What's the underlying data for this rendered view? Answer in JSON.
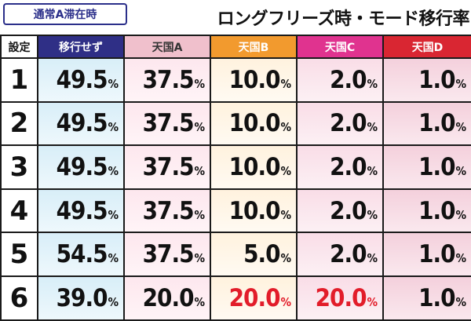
{
  "badge": "通常A滞在時",
  "title": "ロングフリーズ時・モード移行率",
  "columns": {
    "setting": "設定",
    "c0": "移行せず",
    "c1": "天国A",
    "c2": "天国B",
    "c3": "天国C",
    "c4": "天国D"
  },
  "percent_sign": "%",
  "highlight_color": "#e21d2a",
  "rows": [
    {
      "setting": "1",
      "values": [
        "49.5",
        "37.5",
        "10.0",
        "2.0",
        "1.0"
      ],
      "highlight": [
        false,
        false,
        false,
        false,
        false
      ]
    },
    {
      "setting": "2",
      "values": [
        "49.5",
        "37.5",
        "10.0",
        "2.0",
        "1.0"
      ],
      "highlight": [
        false,
        false,
        false,
        false,
        false
      ]
    },
    {
      "setting": "3",
      "values": [
        "49.5",
        "37.5",
        "10.0",
        "2.0",
        "1.0"
      ],
      "highlight": [
        false,
        false,
        false,
        false,
        false
      ]
    },
    {
      "setting": "4",
      "values": [
        "49.5",
        "37.5",
        "10.0",
        "2.0",
        "1.0"
      ],
      "highlight": [
        false,
        false,
        false,
        false,
        false
      ]
    },
    {
      "setting": "5",
      "values": [
        "54.5",
        "37.5",
        "5.0",
        "2.0",
        "1.0"
      ],
      "highlight": [
        false,
        false,
        false,
        false,
        false
      ]
    },
    {
      "setting": "6",
      "values": [
        "39.0",
        "20.0",
        "20.0",
        "20.0",
        "1.0"
      ],
      "highlight": [
        false,
        false,
        true,
        true,
        false
      ]
    }
  ]
}
